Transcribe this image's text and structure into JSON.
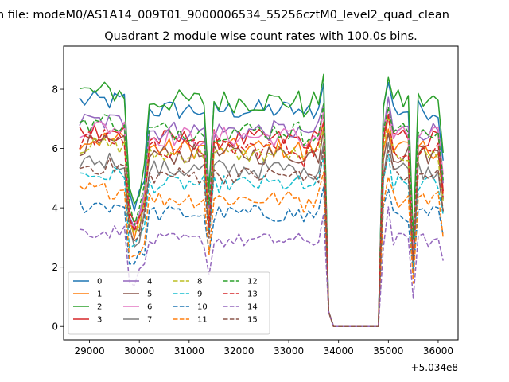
{
  "chart_data": {
    "type": "line",
    "suptitle": "n file: modeM0/AS1A14_009T01_9000006534_55256cztM0_level2_quad_clean",
    "title": "Quadrant 2 module wise count rates with 100.0s bins.",
    "xlabel": "",
    "ylabel": "",
    "x_offset_label": "+5.034e8",
    "xlim": [
      28480,
      36400
    ],
    "ylim": [
      -0.45,
      9.45
    ],
    "xticks": [
      29000,
      30000,
      31000,
      32000,
      33000,
      34000,
      35000,
      36000
    ],
    "xtick_labels": [
      "29000",
      "30000",
      "31000",
      "32000",
      "33000",
      "34000",
      "35000",
      "36000"
    ],
    "yticks": [
      0,
      2,
      4,
      6,
      8
    ],
    "ytick_labels": [
      "0",
      "2",
      "4",
      "6",
      "8"
    ],
    "x_start": 28800,
    "x_step": 100,
    "gap_after_index": 9,
    "gap_start": 33800,
    "gap_end": 34800,
    "gap_level": 0,
    "grid": false,
    "legend_position": "lower-left",
    "legend_columns": 4,
    "series": [
      {
        "name": "0",
        "color": "#1f77b4",
        "dash": "solid",
        "base": 7.3,
        "amp": 0.35
      },
      {
        "name": "1",
        "color": "#ff7f0e",
        "dash": "solid",
        "base": 6.0,
        "amp": 0.35
      },
      {
        "name": "2",
        "color": "#2ca02c",
        "dash": "solid",
        "base": 7.6,
        "amp": 0.4
      },
      {
        "name": "3",
        "color": "#d62728",
        "dash": "solid",
        "base": 6.3,
        "amp": 0.35
      },
      {
        "name": "4",
        "color": "#9467bd",
        "dash": "solid",
        "base": 6.6,
        "amp": 0.35
      },
      {
        "name": "5",
        "color": "#8c564b",
        "dash": "solid",
        "base": 5.8,
        "amp": 0.35
      },
      {
        "name": "6",
        "color": "#e377c2",
        "dash": "solid",
        "base": 6.4,
        "amp": 0.35
      },
      {
        "name": "7",
        "color": "#7f7f7f",
        "dash": "solid",
        "base": 5.3,
        "amp": 0.35
      },
      {
        "name": "8",
        "color": "#bcbd22",
        "dash": "dashed",
        "base": 5.8,
        "amp": 0.3
      },
      {
        "name": "9",
        "color": "#17becf",
        "dash": "dashed",
        "base": 4.8,
        "amp": 0.3
      },
      {
        "name": "10",
        "color": "#1f77b4",
        "dash": "dashed",
        "base": 3.8,
        "amp": 0.3
      },
      {
        "name": "11",
        "color": "#ff7f0e",
        "dash": "dashed",
        "base": 4.3,
        "amp": 0.3
      },
      {
        "name": "12",
        "color": "#2ca02c",
        "dash": "dashed",
        "base": 6.6,
        "amp": 0.35
      },
      {
        "name": "13",
        "color": "#d62728",
        "dash": "dashed",
        "base": 6.0,
        "amp": 0.35
      },
      {
        "name": "14",
        "color": "#9467bd",
        "dash": "dashed",
        "base": 2.9,
        "amp": 0.25
      },
      {
        "name": "15",
        "color": "#8c564b",
        "dash": "dashed",
        "base": 5.1,
        "amp": 0.3
      }
    ]
  }
}
